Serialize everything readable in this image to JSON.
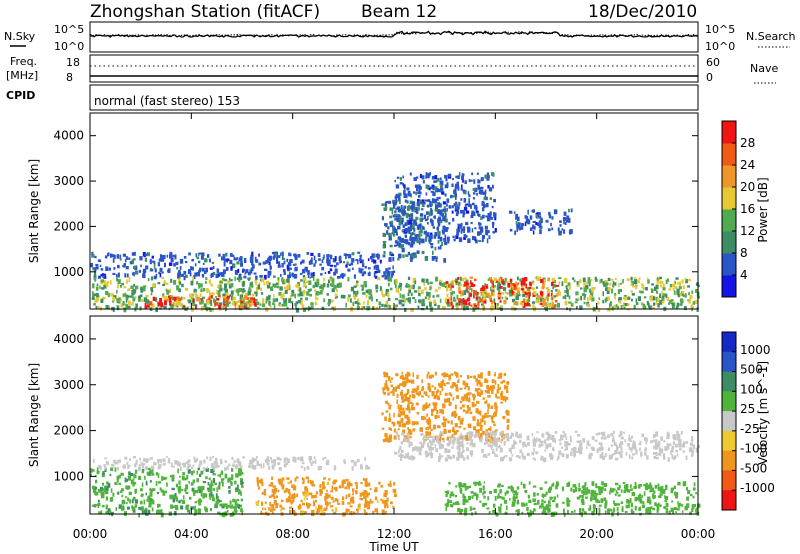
{
  "header": {
    "station": "Zhongshan Station (fitACF)",
    "beam": "Beam 12",
    "date": "18/Dec/2010"
  },
  "top_panels": {
    "nsky_label": "N.Sky",
    "nsearch_label": "N.Search",
    "ns_ticks_left": [
      "10^5",
      "10^0"
    ],
    "ns_ticks_right": [
      "10^5",
      "10^0"
    ],
    "freq_label_1": "Freq.",
    "freq_label_2": "[MHz]",
    "freq_ticks_left": [
      "18",
      "8"
    ],
    "nave_label": "Nave",
    "nave_ticks_right": [
      "60",
      "0"
    ],
    "cpid_label": "CPID",
    "cpid_text": "normal (fast stereo) 153"
  },
  "x_axis": {
    "label": "Time UT",
    "ticks": [
      "00:00",
      "04:00",
      "08:00",
      "12:00",
      "16:00",
      "20:00",
      "00:00"
    ]
  },
  "colors": {
    "power_scale": [
      "#1414e6",
      "#2a55c8",
      "#3c8c64",
      "#50aa50",
      "#e6c832",
      "#f09628",
      "#f05a14",
      "#f01414"
    ],
    "velocity_scale": [
      "#1428c8",
      "#2a55c8",
      "#3c8c64",
      "#50b43c",
      "#c8c8c8",
      "#f0c832",
      "#f0961e",
      "#f05a14",
      "#f01414"
    ]
  },
  "chart_data": [
    {
      "type": "heatmap",
      "title": "Power",
      "ylabel": "Slant Range [km]",
      "xlabel": "",
      "x_range_hours": [
        0,
        24
      ],
      "ylim": [
        180,
        4500
      ],
      "y_ticks": [
        "1000",
        "2000",
        "3000",
        "4000"
      ],
      "colorbar": {
        "label": "Power [dB]",
        "ticks": [
          "4",
          "8",
          "12",
          "16",
          "20",
          "24",
          "28"
        ]
      },
      "regions": [
        {
          "hours": [
            0.0,
            12.0
          ],
          "range_km": [
            900,
            1450
          ],
          "power_db": 6
        },
        {
          "hours": [
            0.0,
            24.0
          ],
          "range_km": [
            200,
            900
          ],
          "power_db": 14
        },
        {
          "hours": [
            2.0,
            6.5
          ],
          "range_km": [
            250,
            500
          ],
          "power_db": 26
        },
        {
          "hours": [
            11.5,
            14.0
          ],
          "range_km": [
            1300,
            2600
          ],
          "power_db": 8
        },
        {
          "hours": [
            12.0,
            16.0
          ],
          "range_km": [
            1700,
            3200
          ],
          "power_db": 6
        },
        {
          "hours": [
            14.0,
            18.5
          ],
          "range_km": [
            250,
            900
          ],
          "power_db": 27
        },
        {
          "hours": [
            16.5,
            19.0
          ],
          "range_km": [
            1900,
            2400
          ],
          "power_db": 6
        }
      ]
    },
    {
      "type": "heatmap",
      "title": "Velocity",
      "ylabel": "Slant Range [km]",
      "xlabel": "Time UT",
      "x_range_hours": [
        0,
        24
      ],
      "ylim": [
        180,
        4500
      ],
      "y_ticks": [
        "1000",
        "2000",
        "3000",
        "4000"
      ],
      "colorbar": {
        "label": "Velocity [m s^-1]",
        "ticks": [
          "1000",
          "500",
          "100",
          "25",
          "-25",
          "-100",
          "-500",
          "-1000"
        ]
      },
      "regions": [
        {
          "hours": [
            0.0,
            6.0
          ],
          "range_km": [
            200,
            1200
          ],
          "velocity_ms": 80
        },
        {
          "hours": [
            0.0,
            11.0
          ],
          "range_km": [
            1200,
            1450
          ],
          "velocity_ms": 0
        },
        {
          "hours": [
            6.5,
            12.0
          ],
          "range_km": [
            200,
            1000
          ],
          "velocity_ms": -150
        },
        {
          "hours": [
            11.5,
            16.5
          ],
          "range_km": [
            1800,
            3300
          ],
          "velocity_ms": -200
        },
        {
          "hours": [
            12.0,
            24.0
          ],
          "range_km": [
            1400,
            2000
          ],
          "velocity_ms": 0
        },
        {
          "hours": [
            14.0,
            24.0
          ],
          "range_km": [
            200,
            900
          ],
          "velocity_ms": 60
        }
      ]
    }
  ]
}
